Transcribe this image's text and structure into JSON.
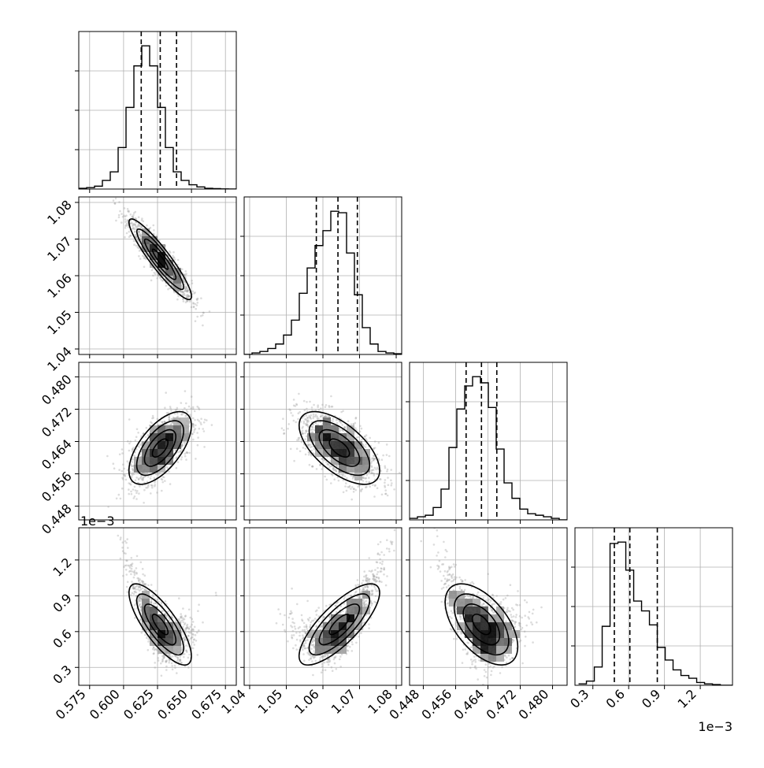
{
  "chart_data": {
    "type": "corner",
    "title": "",
    "parameters": [
      {
        "name": "",
        "range": [
          0.567,
          0.683
        ],
        "ticks": [
          0.575,
          0.6,
          0.625,
          0.65,
          0.675
        ],
        "tick_labels": [
          "0.575",
          "0.600",
          "0.625",
          "0.650",
          "0.675"
        ],
        "offset_text": "",
        "quantiles": [
          0.613,
          0.627,
          0.639
        ],
        "hist_edges_start": 0.567,
        "hist_bin_width": 0.0058,
        "hist_counts": [
          0.5,
          1,
          2,
          6,
          12,
          29,
          57,
          86,
          100,
          86,
          57,
          29,
          12,
          6,
          3,
          1.5,
          0.5,
          0.3,
          0.1,
          0
        ]
      },
      {
        "name": "",
        "range": [
          1.0385,
          1.0815
        ],
        "ticks": [
          1.04,
          1.05,
          1.06,
          1.07,
          1.08
        ],
        "tick_labels": [
          "1.04",
          "1.05",
          "1.06",
          "1.07",
          "1.08"
        ],
        "offset_text": "",
        "quantiles": [
          1.0582,
          1.0641,
          1.0694
        ],
        "hist_edges_start": 1.0385,
        "hist_bin_width": 0.00215,
        "hist_counts": [
          0,
          1,
          2,
          4,
          7,
          13,
          23,
          41,
          58,
          73,
          83,
          96,
          95,
          68,
          40,
          18,
          7,
          2,
          1,
          0.5
        ]
      },
      {
        "name": "",
        "range": [
          0.4446,
          0.4836
        ],
        "ticks": [
          0.448,
          0.456,
          0.464,
          0.472,
          0.48
        ],
        "tick_labels": [
          "0.448",
          "0.456",
          "0.464",
          "0.472",
          "0.480"
        ],
        "offset_text": "",
        "quantiles": [
          0.4586,
          0.4624,
          0.4662
        ],
        "hist_edges_start": 0.4446,
        "hist_bin_width": 0.00195,
        "hist_counts": [
          1,
          2,
          3,
          8,
          20,
          47,
          72,
          87,
          93,
          89,
          73,
          46,
          24,
          14,
          7,
          4,
          3,
          2,
          1,
          0
        ]
      },
      {
        "name": "",
        "range": [
          0.15,
          1.47
        ],
        "ticks": [
          0.3,
          0.6,
          0.9,
          1.2
        ],
        "tick_labels": [
          "0.3",
          "0.6",
          "0.9",
          "1.2"
        ],
        "offset_text": "1e−3",
        "quantiles": [
          0.48,
          0.61,
          0.84
        ],
        "hist_edges_start": 0.18,
        "hist_bin_width": 0.066,
        "hist_counts": [
          1,
          3,
          13,
          42,
          101,
          102,
          82,
          60,
          53,
          43,
          27,
          18,
          11,
          7,
          5,
          2,
          1,
          0.5,
          0,
          0
        ]
      }
    ],
    "pairs": [
      {
        "row": 1,
        "col": 0,
        "mean": [
          0.627,
          1.0645
        ],
        "sd": [
          0.0115,
          0.0055
        ],
        "corr": -0.92
      },
      {
        "row": 2,
        "col": 0,
        "mean": [
          0.627,
          0.4624
        ],
        "sd": [
          0.0115,
          0.0045
        ],
        "corr": 0.62
      },
      {
        "row": 2,
        "col": 1,
        "mean": [
          1.0645,
          0.4624
        ],
        "sd": [
          0.0055,
          0.0045
        ],
        "corr": -0.62
      },
      {
        "row": 3,
        "col": 0,
        "mean": [
          0.627,
          0.66
        ],
        "sd": [
          0.0115,
          0.17
        ],
        "corr": -0.78,
        "skew": 0.0045
      },
      {
        "row": 3,
        "col": 1,
        "mean": [
          1.0645,
          0.66
        ],
        "sd": [
          0.0055,
          0.17
        ],
        "corr": 0.78,
        "skew": -0.0022
      },
      {
        "row": 3,
        "col": 2,
        "mean": [
          0.4624,
          0.66
        ],
        "sd": [
          0.0045,
          0.17
        ],
        "corr": -0.55
      }
    ],
    "grid": true,
    "colors": {
      "hist": "#000000",
      "points": "#9a9a9a",
      "contour": "#000000",
      "grid": "#b0b0b0"
    }
  }
}
